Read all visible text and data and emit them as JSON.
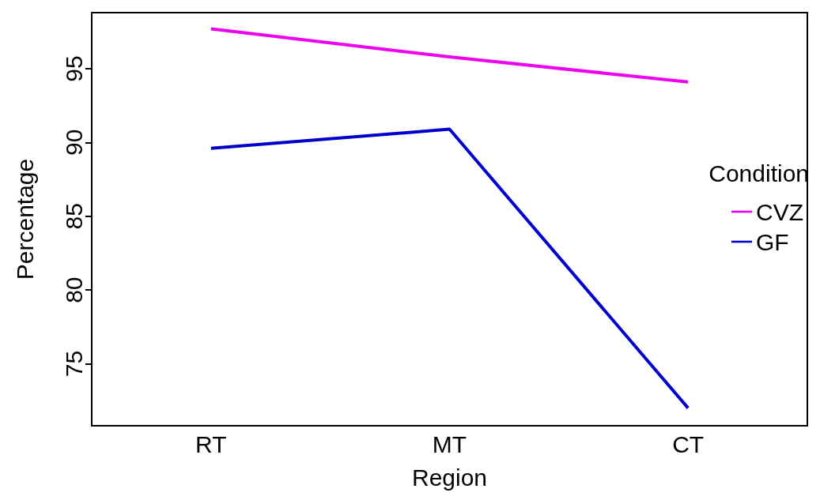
{
  "chart_data": {
    "type": "line",
    "xlabel": "Region",
    "ylabel": "Percentage",
    "legend_title": "Condition",
    "categories": [
      "RT",
      "MT",
      "CT"
    ],
    "series": [
      {
        "name": "CVZ",
        "color": "#ee00ee",
        "values": [
          97.7,
          95.8,
          94.1
        ]
      },
      {
        "name": "GF",
        "color": "#0000cc",
        "values": [
          89.6,
          90.9,
          72.0
        ]
      }
    ],
    "ylim": [
      70.8,
      98.8
    ],
    "yticks": [
      75,
      80,
      85,
      90,
      95
    ],
    "grid": false,
    "legend": "right",
    "marker": "none",
    "line_style": "solid"
  }
}
